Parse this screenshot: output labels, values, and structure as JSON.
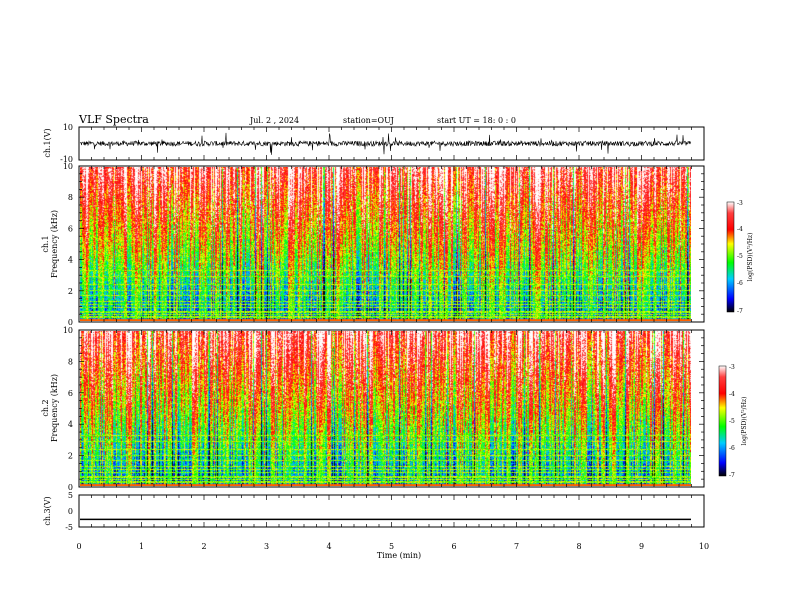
{
  "header": {
    "title": "VLF Spectra",
    "date": "Jul. 2 , 2024",
    "station": "station=OUJ",
    "start": "start UT = 18: 0 : 0"
  },
  "chart_data": [
    {
      "type": "line",
      "name": "ch1-waveform",
      "ylabel": "ch.1(V)",
      "ylim": [
        -10,
        10
      ],
      "yticks": [
        "10",
        "-10"
      ],
      "xlim": [
        0,
        10
      ],
      "description_values": {
        "baseline": 0,
        "typical_range": [
          -3,
          3
        ]
      }
    },
    {
      "type": "heatmap",
      "name": "ch1-spectrogram",
      "ylabel": "ch.1\nFrequency (kHz)",
      "ylabel_lines": [
        "ch.1",
        "Frequency (kHz)"
      ],
      "ylim": [
        0,
        10
      ],
      "yticks": [
        "0",
        "2",
        "4",
        "6",
        "8",
        "10"
      ],
      "xlim": [
        0,
        9.83
      ],
      "colorbar": {
        "label": "log(PSD)(V²/Hz)",
        "range": [
          -7,
          -3
        ],
        "ticks": [
          "-3",
          "-4",
          "-5",
          "-6",
          "-7"
        ],
        "colors": [
          "#000000",
          "#0000ff",
          "#00ccff",
          "#00ff00",
          "#ffff00",
          "#ff0000",
          "#ffffff"
        ]
      }
    },
    {
      "type": "heatmap",
      "name": "ch2-spectrogram",
      "ylabel": "ch.2\nFrequency (kHz)",
      "ylabel_lines": [
        "ch.2",
        "Frequency (kHz)"
      ],
      "ylim": [
        0,
        10
      ],
      "yticks": [
        "0",
        "2",
        "4",
        "6",
        "8",
        "10"
      ],
      "xlim": [
        0,
        9.83
      ],
      "colorbar": {
        "label": "log(PSD)(V²/Hz)",
        "range": [
          -7,
          -3
        ],
        "ticks": [
          "-3",
          "-4",
          "-5",
          "-6",
          "-7"
        ],
        "colors": [
          "#000000",
          "#0000ff",
          "#00ccff",
          "#00ff00",
          "#ffff00",
          "#ff0000",
          "#ffffff"
        ]
      }
    },
    {
      "type": "line",
      "name": "ch3-waveform",
      "ylabel": "ch.3(V)",
      "ylim": [
        -5,
        5
      ],
      "yticks": [
        "5",
        "0",
        "-5"
      ],
      "xlim": [
        0,
        10
      ],
      "values": {
        "constant": -2.6
      }
    }
  ],
  "xaxis": {
    "label": "Time (min)",
    "ticks": [
      "0",
      "1",
      "2",
      "3",
      "4",
      "5",
      "6",
      "7",
      "8",
      "9",
      "10"
    ],
    "range": [
      0,
      10
    ]
  }
}
